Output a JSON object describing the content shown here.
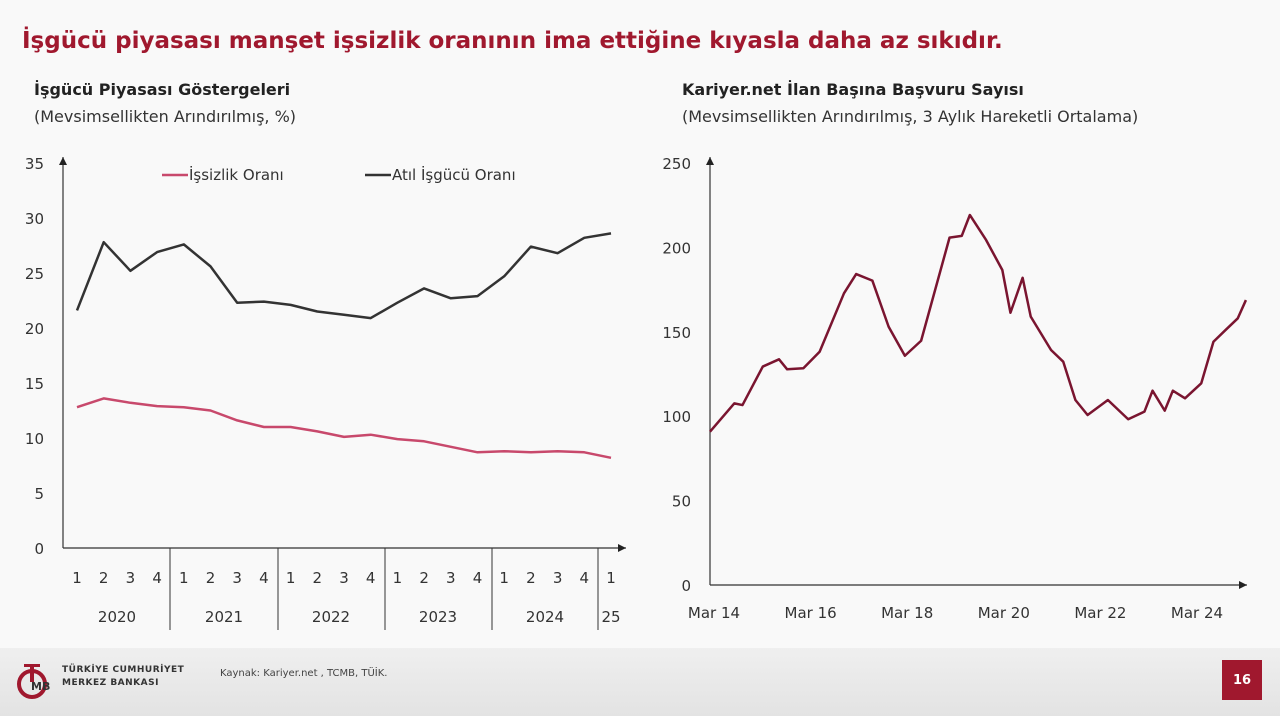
{
  "title": "İşgücü piyasası manşet işsizlik oranının ima ettiğine kıyasla daha az sıkıdır.",
  "chart_data": [
    {
      "type": "line",
      "title": "İşgücü Piyasası Göstergeleri",
      "subtitle": "(Mevsimsellikten Arındırılmış, %)",
      "ylim": [
        0,
        35
      ],
      "yticks": [
        "0",
        "5",
        "10",
        "15",
        "20",
        "25",
        "30",
        "35"
      ],
      "quarter_labels": [
        "1",
        "2",
        "3",
        "4",
        "1",
        "2",
        "3",
        "4",
        "1",
        "2",
        "3",
        "4",
        "1",
        "2",
        "3",
        "4",
        "1",
        "2",
        "3",
        "4",
        "1"
      ],
      "year_labels": [
        "2020",
        "2021",
        "2022",
        "2023",
        "2024",
        "25"
      ],
      "legend_position": "top",
      "series": [
        {
          "name": "İşsizlik Oranı",
          "color": "#c8496c",
          "values": [
            12.8,
            13.6,
            13.2,
            12.9,
            12.8,
            12.5,
            11.6,
            11.0,
            11.0,
            10.6,
            10.1,
            10.3,
            9.9,
            9.7,
            9.2,
            8.7,
            8.8,
            8.7,
            8.8,
            8.7,
            8.2
          ]
        },
        {
          "name": "Atıl İşgücü Oranı",
          "color": "#333333",
          "values": [
            21.6,
            27.8,
            25.2,
            26.9,
            27.6,
            25.6,
            22.3,
            22.4,
            22.1,
            21.5,
            21.2,
            20.9,
            22.3,
            23.6,
            22.7,
            22.9,
            24.7,
            27.4,
            26.8,
            28.2,
            28.6
          ]
        }
      ]
    },
    {
      "type": "line",
      "title": "Kariyer.net İlan Başına Başvuru Sayısı",
      "subtitle": "(Mevsimsellikten Arındırılmış, 3 Aylık Hareketli Ortalama)",
      "ylim": [
        0,
        250
      ],
      "yticks": [
        "0",
        "50",
        "100",
        "150",
        "200",
        "250"
      ],
      "xticks": [
        "Mar 14",
        "Mar 16",
        "Mar 18",
        "Mar 20",
        "Mar 22",
        "Mar 24"
      ],
      "x_unit": "months since Mar 2014",
      "series": [
        {
          "name": "Başvuru Sayısı",
          "color": "#7a1530",
          "points": [
            [
              0,
              90.8
            ],
            [
              6,
              107.6
            ],
            [
              8,
              106.6
            ],
            [
              13,
              129.4
            ],
            [
              17,
              133.7
            ],
            [
              19,
              127.8
            ],
            [
              23,
              128.4
            ],
            [
              27,
              138.2
            ],
            [
              33,
              172.8
            ],
            [
              36,
              184.2
            ],
            [
              40,
              180.3
            ],
            [
              44,
              153
            ],
            [
              48,
              135.8
            ],
            [
              52,
              144.7
            ],
            [
              59,
              205.8
            ],
            [
              62,
              206.8
            ],
            [
              64,
              219.2
            ],
            [
              68,
              204.4
            ],
            [
              72,
              186.6
            ],
            [
              74,
              161.3
            ],
            [
              77,
              182
            ],
            [
              79,
              159
            ],
            [
              84,
              139.2
            ],
            [
              87,
              132.3
            ],
            [
              90,
              109.6
            ],
            [
              93,
              100.7
            ],
            [
              98,
              109.6
            ],
            [
              103,
              98.2
            ],
            [
              107,
              102.7
            ],
            [
              109,
              115.1
            ],
            [
              112,
              103.3
            ],
            [
              114,
              115.1
            ],
            [
              117,
              110.6
            ],
            [
              121,
              119.5
            ],
            [
              124,
              144.1
            ],
            [
              127,
              151.1
            ],
            [
              130,
              158
            ],
            [
              132,
              168.8
            ]
          ]
        }
      ]
    }
  ],
  "footer": {
    "bank_line1": "TÜRKİYE CUMHURİYET",
    "bank_line2": "MERKEZ BANKASI",
    "logo_text": "TCMB",
    "source": "Kaynak: Kariyer.net , TCMB, TÜİK.",
    "page_number": "16"
  }
}
